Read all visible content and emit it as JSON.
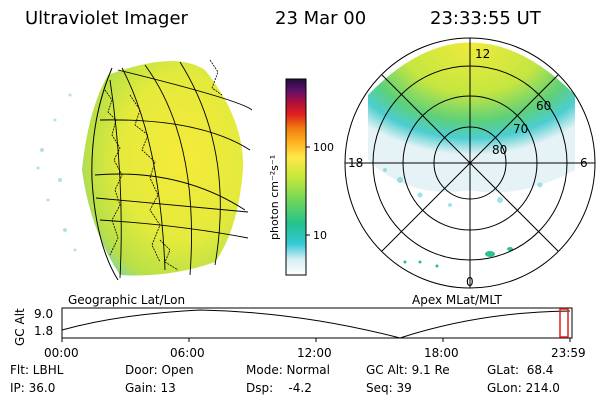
{
  "header": {
    "instrument": "Ultraviolet Imager",
    "date": "23 Mar 00",
    "time": "23:33:55 UT"
  },
  "colorbar": {
    "unit_label": "photon cm⁻²s⁻¹",
    "scale": "log",
    "ticks": [
      "100",
      "10"
    ],
    "colors": [
      "#ffffff",
      "#d6eef4",
      "#35c8d6",
      "#22c28e",
      "#6fd65a",
      "#c6e83a",
      "#ffe84a",
      "#ffb020",
      "#f07a10",
      "#e02020",
      "#b0103a",
      "#60106a",
      "#20103a"
    ]
  },
  "geographic_panel": {
    "label": "Geographic Lat/Lon"
  },
  "polar_panel": {
    "label": "Apex MLat/MLT",
    "mlt_labels": {
      "top": "12",
      "left": "18",
      "right": "6",
      "bottom": "0"
    },
    "lat_labels": [
      "60",
      "70",
      "80"
    ]
  },
  "altitude_plot": {
    "axis_label": "GC Alt",
    "y_ticks": [
      "9.0",
      "1.8"
    ],
    "x_ticks": [
      "00:00",
      "06:00",
      "12:00",
      "18:00",
      "23:59"
    ],
    "current_marker_color": "#e02020"
  },
  "status": {
    "flt": "Flt: LBHL",
    "ip": "IP: 36.0",
    "door": "Door: Open",
    "gain": "Gain: 13",
    "mode": "Mode: Normal",
    "dsp": "Dsp:    -4.2",
    "gc_alt": "GC Alt: 9.1 Re",
    "seq": "Seq: 39",
    "glat": "GLat:  68.4",
    "glon": "GLon: 214.0"
  }
}
